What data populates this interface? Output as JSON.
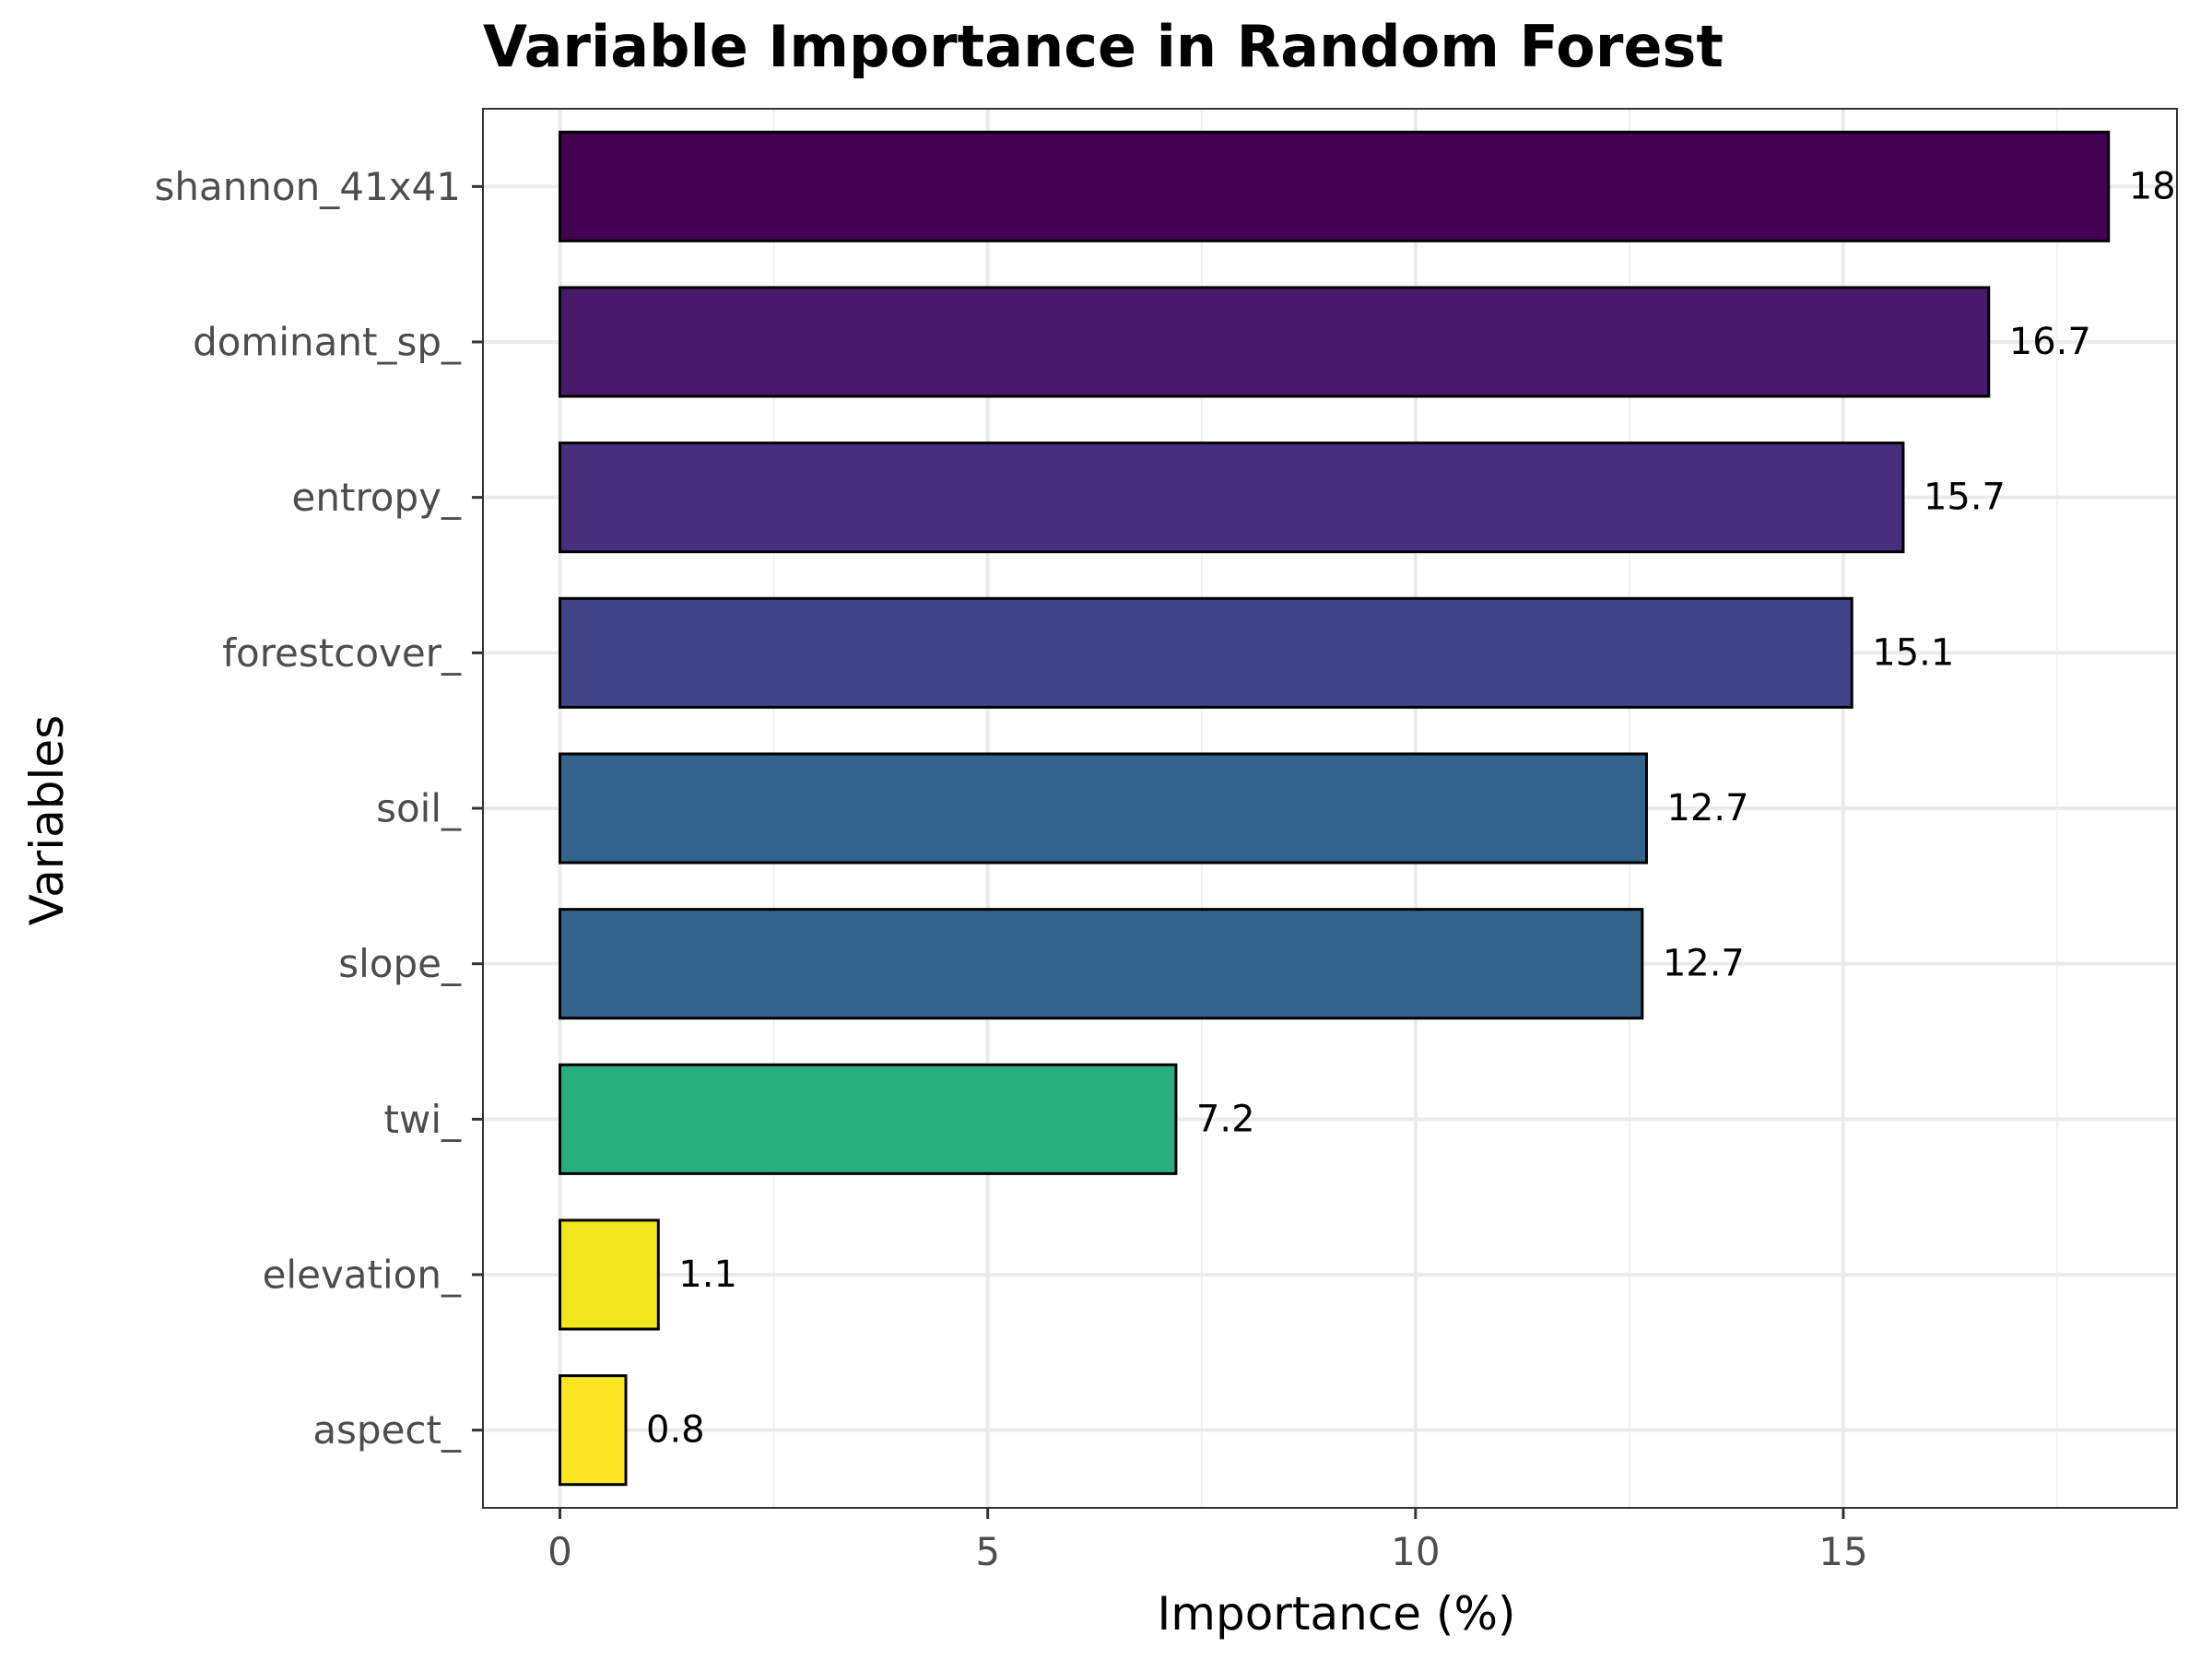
{
  "chart_data": {
    "type": "bar",
    "orientation": "horizontal",
    "title": "Variable Importance in Random Forest",
    "xlabel": "Importance (%)",
    "ylabel": "Variables",
    "xlim": [
      -0.9,
      18.9
    ],
    "xticks": [
      0,
      5,
      10,
      15
    ],
    "grid": true,
    "categories": [
      "shannon_41x41",
      "dominant_sp_",
      "entropy_",
      "forestcover_",
      "soil_",
      "slope_",
      "twi_",
      "elevation_",
      "aspect_"
    ],
    "values": [
      18.1,
      16.7,
      15.7,
      15.1,
      12.7,
      12.65,
      7.2,
      1.15,
      0.77
    ],
    "data_labels": [
      "18",
      "16.7",
      "15.7",
      "15.1",
      "12.7",
      "12.7",
      "7.2",
      "1.1",
      "0.8"
    ],
    "colors": [
      "#440154",
      "#481a6c",
      "#472f7d",
      "#414487",
      "#33638d",
      "#33628d",
      "#29af7f",
      "#f1e51d",
      "#fde725"
    ],
    "bar_outline": "#000000"
  }
}
